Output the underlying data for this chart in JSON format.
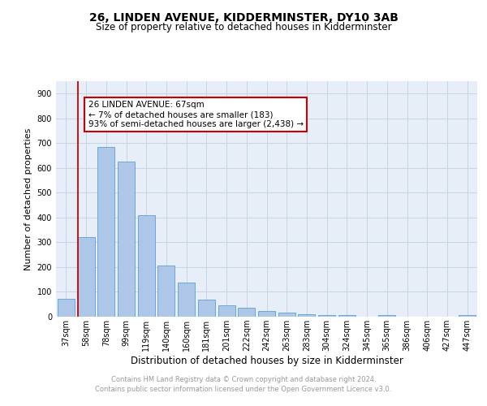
{
  "title": "26, LINDEN AVENUE, KIDDERMINSTER, DY10 3AB",
  "subtitle": "Size of property relative to detached houses in Kidderminster",
  "xlabel": "Distribution of detached houses by size in Kidderminster",
  "ylabel": "Number of detached properties",
  "categories": [
    "37sqm",
    "58sqm",
    "78sqm",
    "99sqm",
    "119sqm",
    "140sqm",
    "160sqm",
    "181sqm",
    "201sqm",
    "222sqm",
    "242sqm",
    "263sqm",
    "283sqm",
    "304sqm",
    "324sqm",
    "345sqm",
    "365sqm",
    "386sqm",
    "406sqm",
    "427sqm",
    "447sqm"
  ],
  "values": [
    72,
    320,
    685,
    625,
    410,
    207,
    137,
    68,
    47,
    35,
    22,
    15,
    10,
    8,
    7,
    0,
    8,
    0,
    0,
    0,
    7
  ],
  "bar_color": "#aec6e8",
  "bar_edge_color": "#5a9fd4",
  "vline_x_bar_index": 1,
  "vline_color": "#cc0000",
  "annotation_text": "26 LINDEN AVENUE: 67sqm\n← 7% of detached houses are smaller (183)\n93% of semi-detached houses are larger (2,438) →",
  "annotation_box_color": "#ffffff",
  "annotation_box_edge": "#cc0000",
  "ylim": [
    0,
    950
  ],
  "yticks": [
    0,
    100,
    200,
    300,
    400,
    500,
    600,
    700,
    800,
    900
  ],
  "grid_color": "#c8d4e8",
  "background_color": "#e8eef8",
  "footer_line1": "Contains HM Land Registry data © Crown copyright and database right 2024.",
  "footer_line2": "Contains public sector information licensed under the Open Government Licence v3.0.",
  "title_fontsize": 10,
  "subtitle_fontsize": 8.5,
  "ylabel_fontsize": 8,
  "xlabel_fontsize": 8.5,
  "tick_fontsize": 7,
  "annotation_fontsize": 7.5,
  "footer_fontsize": 6,
  "footer_color": "#999999"
}
